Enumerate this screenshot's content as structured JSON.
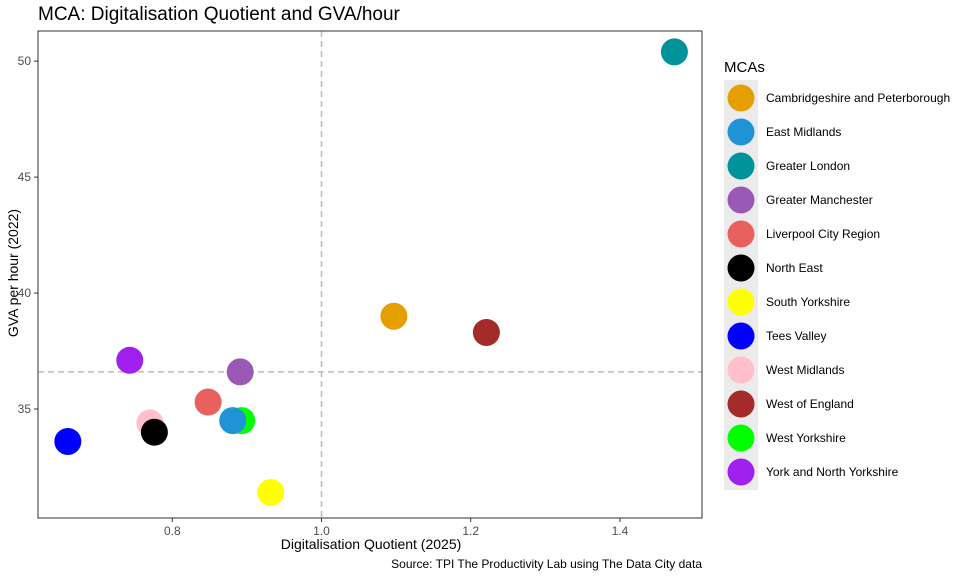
{
  "chart_data": {
    "type": "scatter",
    "title": "MCA: Digitalisation Quotient and GVA/hour",
    "xlabel": "Digitalisation Quotient (2025)",
    "ylabel": "GVA per hour (2022)",
    "caption": "Source: TPI The Productivity Lab using The Data City data",
    "xlim": [
      0.62,
      1.51
    ],
    "ylim": [
      30.3,
      51.3
    ],
    "xticks": [
      0.8,
      1.0,
      1.2,
      1.4
    ],
    "xtick_labels": [
      "0.8",
      "1.0",
      "1.2",
      "1.4"
    ],
    "yticks": [
      35,
      40,
      45,
      50
    ],
    "ytick_labels": [
      "35",
      "40",
      "45",
      "50"
    ],
    "reference_lines": {
      "x": 1.0,
      "y": 36.6
    },
    "grid": false,
    "legend": {
      "title": "MCAs",
      "placement": "right"
    },
    "series": [
      {
        "name": "Cambridgeshire and Peterborough",
        "color": "#E69F00",
        "x": 1.097,
        "y": 39.0
      },
      {
        "name": "East Midlands",
        "color": "#1F93D6",
        "x": 0.881,
        "y": 34.5
      },
      {
        "name": "Greater London",
        "color": "#00939A",
        "x": 1.473,
        "y": 50.4
      },
      {
        "name": "Greater Manchester",
        "color": "#9B59B6",
        "x": 0.891,
        "y": 36.6
      },
      {
        "name": "Liverpool City Region",
        "color": "#E8615E",
        "x": 0.848,
        "y": 35.3
      },
      {
        "name": "North East",
        "color": "#000000",
        "x": 0.776,
        "y": 34.0
      },
      {
        "name": "South Yorkshire",
        "color": "#FFFF00",
        "x": 0.932,
        "y": 31.4
      },
      {
        "name": "Tees Valley",
        "color": "#0000FF",
        "x": 0.66,
        "y": 33.6
      },
      {
        "name": "West Midlands",
        "color": "#FFC0CB",
        "x": 0.77,
        "y": 34.4
      },
      {
        "name": "West of England",
        "color": "#A52A2A",
        "x": 1.221,
        "y": 38.3
      },
      {
        "name": "West Yorkshire",
        "color": "#00FF00",
        "x": 0.893,
        "y": 34.5
      },
      {
        "name": "York and North Yorkshire",
        "color": "#A020F0",
        "x": 0.743,
        "y": 37.1
      }
    ],
    "draw_order": [
      11,
      3,
      4,
      8,
      5,
      7,
      10,
      1,
      6,
      9,
      0,
      2
    ]
  }
}
